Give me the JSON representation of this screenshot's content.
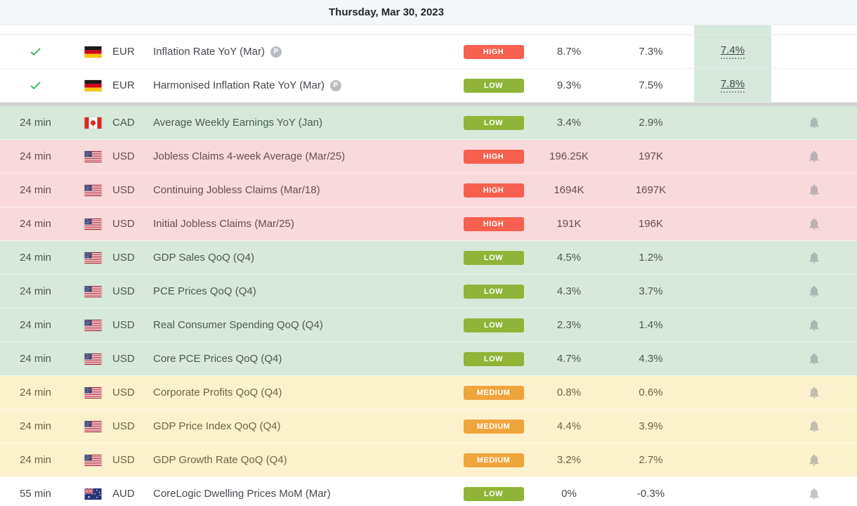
{
  "header": {
    "date_label": "Thursday, Mar 30, 2023"
  },
  "icons": {
    "preliminary_label": "P"
  },
  "colors": {
    "header_bg": "#f4f6fa",
    "separator_gray": "#d2d2d2",
    "consensus_highlight": "#d6e9dc",
    "row_white": "#ffffff",
    "row_green": "#d6e9da",
    "row_pink": "#f8d9dc",
    "row_yellow": "#fbf1cd",
    "high": "#f7604e",
    "low": "#8fb437",
    "medium": "#f0a43c",
    "check_green": "#0ea944"
  },
  "rows": [
    {
      "released": true,
      "time": "",
      "flag": "de",
      "currency": "EUR",
      "event": "Inflation Rate YoY (Mar)",
      "preliminary": true,
      "importance": "HIGH",
      "actual": "8.7%",
      "previous": "7.3%",
      "consensus": "7.4%",
      "tint": "white",
      "bell": false,
      "separator_below": false
    },
    {
      "released": true,
      "time": "",
      "flag": "de",
      "currency": "EUR",
      "event": "Harmonised Inflation Rate YoY (Mar)",
      "preliminary": true,
      "importance": "LOW",
      "actual": "9.3%",
      "previous": "7.5%",
      "consensus": "7.8%",
      "tint": "white",
      "bell": false,
      "separator_below": true
    },
    {
      "released": false,
      "time": "24 min",
      "flag": "ca",
      "currency": "CAD",
      "event": "Average Weekly Earnings YoY (Jan)",
      "preliminary": false,
      "importance": "LOW",
      "actual": "3.4%",
      "previous": "2.9%",
      "consensus": "",
      "tint": "green",
      "bell": true,
      "separator_below": false
    },
    {
      "released": false,
      "time": "24 min",
      "flag": "us",
      "currency": "USD",
      "event": "Jobless Claims 4-week Average (Mar/25)",
      "preliminary": false,
      "importance": "HIGH",
      "actual": "196.25K",
      "previous": "197K",
      "consensus": "",
      "tint": "pink",
      "bell": true,
      "separator_below": false
    },
    {
      "released": false,
      "time": "24 min",
      "flag": "us",
      "currency": "USD",
      "event": "Continuing Jobless Claims (Mar/18)",
      "preliminary": false,
      "importance": "HIGH",
      "actual": "1694K",
      "previous": "1697K",
      "consensus": "",
      "tint": "pink",
      "bell": true,
      "separator_below": false
    },
    {
      "released": false,
      "time": "24 min",
      "flag": "us",
      "currency": "USD",
      "event": "Initial Jobless Claims (Mar/25)",
      "preliminary": false,
      "importance": "HIGH",
      "actual": "191K",
      "previous": "196K",
      "consensus": "",
      "tint": "pink",
      "bell": true,
      "separator_below": false
    },
    {
      "released": false,
      "time": "24 min",
      "flag": "us",
      "currency": "USD",
      "event": "GDP Sales QoQ (Q4)",
      "preliminary": false,
      "importance": "LOW",
      "actual": "4.5%",
      "previous": "1.2%",
      "consensus": "",
      "tint": "green",
      "bell": true,
      "separator_below": false
    },
    {
      "released": false,
      "time": "24 min",
      "flag": "us",
      "currency": "USD",
      "event": "PCE Prices QoQ (Q4)",
      "preliminary": false,
      "importance": "LOW",
      "actual": "4.3%",
      "previous": "3.7%",
      "consensus": "",
      "tint": "green",
      "bell": true,
      "separator_below": false
    },
    {
      "released": false,
      "time": "24 min",
      "flag": "us",
      "currency": "USD",
      "event": "Real Consumer Spending QoQ (Q4)",
      "preliminary": false,
      "importance": "LOW",
      "actual": "2.3%",
      "previous": "1.4%",
      "consensus": "",
      "tint": "green",
      "bell": true,
      "separator_below": false
    },
    {
      "released": false,
      "time": "24 min",
      "flag": "us",
      "currency": "USD",
      "event": "Core PCE Prices QoQ (Q4)",
      "preliminary": false,
      "importance": "LOW",
      "actual": "4.7%",
      "previous": "4.3%",
      "consensus": "",
      "tint": "green",
      "bell": true,
      "separator_below": false
    },
    {
      "released": false,
      "time": "24 min",
      "flag": "us",
      "currency": "USD",
      "event": "Corporate Profits QoQ (Q4)",
      "preliminary": false,
      "importance": "MEDIUM",
      "actual": "0.8%",
      "previous": "0.6%",
      "consensus": "",
      "tint": "yellow",
      "bell": true,
      "separator_below": false
    },
    {
      "released": false,
      "time": "24 min",
      "flag": "us",
      "currency": "USD",
      "event": "GDP Price Index QoQ (Q4)",
      "preliminary": false,
      "importance": "MEDIUM",
      "actual": "4.4%",
      "previous": "3.9%",
      "consensus": "",
      "tint": "yellow",
      "bell": true,
      "separator_below": false
    },
    {
      "released": false,
      "time": "24 min",
      "flag": "us",
      "currency": "USD",
      "event": "GDP Growth Rate QoQ (Q4)",
      "preliminary": false,
      "importance": "MEDIUM",
      "actual": "3.2%",
      "previous": "2.7%",
      "consensus": "",
      "tint": "yellow",
      "bell": true,
      "separator_below": false
    },
    {
      "released": false,
      "time": "55 min",
      "flag": "au",
      "currency": "AUD",
      "event": "CoreLogic Dwelling Prices MoM (Mar)",
      "preliminary": false,
      "importance": "LOW",
      "actual": "0%",
      "previous": "-0.3%",
      "consensus": "",
      "tint": "white",
      "bell": true,
      "separator_below": false
    }
  ]
}
